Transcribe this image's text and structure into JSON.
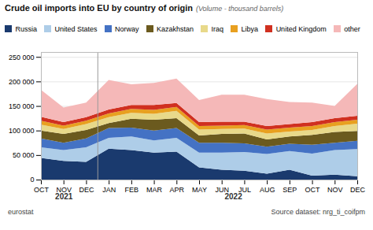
{
  "chart_data": {
    "type": "area",
    "stacked": true,
    "title": "Crude oil imports into EU by country of origin",
    "subtitle": "(Volume - thousand barrels)",
    "categories": [
      "OCT",
      "NOV",
      "DEC",
      "JAN",
      "FEB",
      "MAR",
      "APR",
      "MAY",
      "JUN",
      "JUL",
      "AUG",
      "SEP",
      "OCT",
      "NOV",
      "DEC"
    ],
    "series": [
      {
        "name": "Russia",
        "color": "#1a3a6e",
        "values": [
          44000,
          38000,
          36000,
          63000,
          60000,
          55000,
          57000,
          25000,
          20000,
          18000,
          12000,
          20000,
          8000,
          10000,
          7000
        ]
      },
      {
        "name": "United States",
        "color": "#aecde8",
        "values": [
          22000,
          22000,
          30000,
          22000,
          28000,
          25000,
          28000,
          30000,
          35000,
          38000,
          40000,
          38000,
          45000,
          50000,
          55000
        ]
      },
      {
        "name": "Norway",
        "color": "#4472c4",
        "values": [
          18000,
          15000,
          18000,
          20000,
          18000,
          20000,
          20000,
          20000,
          20000,
          18000,
          15000,
          15000,
          18000,
          15000,
          17000
        ]
      },
      {
        "name": "Kazakhstan",
        "color": "#6b5a1e",
        "values": [
          16000,
          18000,
          17000,
          10000,
          18000,
          22000,
          20000,
          15000,
          18000,
          20000,
          15000,
          15000,
          20000,
          22000,
          20000
        ]
      },
      {
        "name": "Iraq",
        "color": "#e8d98a",
        "values": [
          12000,
          10000,
          12000,
          12000,
          12000,
          12000,
          15000,
          12000,
          10000,
          10000,
          12000,
          10000,
          10000,
          12000,
          15000
        ]
      },
      {
        "name": "Libya",
        "color": "#e8a020",
        "values": [
          8000,
          7000,
          7000,
          8000,
          8000,
          8000,
          8000,
          7000,
          7000,
          7000,
          8000,
          8000,
          8000,
          8000,
          8000
        ]
      },
      {
        "name": "United Kingdom",
        "color": "#d03020",
        "values": [
          8000,
          7000,
          7000,
          8000,
          8000,
          10000,
          8000,
          8000,
          8000,
          7000,
          7000,
          7000,
          8000,
          8000,
          8000
        ]
      },
      {
        "name": "other",
        "color": "#f5b8b8",
        "values": [
          55000,
          30000,
          30000,
          60000,
          42000,
          45000,
          50000,
          45000,
          55000,
          55000,
          55000,
          45000,
          40000,
          25000,
          65000
        ]
      }
    ],
    "ylim": [
      0,
      260000
    ],
    "yticks": [
      0,
      {
        "value": 50000,
        "label": "50 000"
      },
      {
        "value": 100000,
        "label": "100 000"
      },
      {
        "value": 150000,
        "label": "150 000"
      },
      {
        "value": 200000,
        "label": "200 000"
      },
      {
        "value": 250000,
        "label": "250 000"
      }
    ],
    "grid": true,
    "legend": "top",
    "annotations": [
      {
        "text": "2021",
        "start": 0,
        "end": 2
      },
      {
        "text": "2022",
        "start": 3,
        "end": 14
      }
    ],
    "credit": "eurostat",
    "source": "Source dataset: nrg_ti_coifpm"
  }
}
